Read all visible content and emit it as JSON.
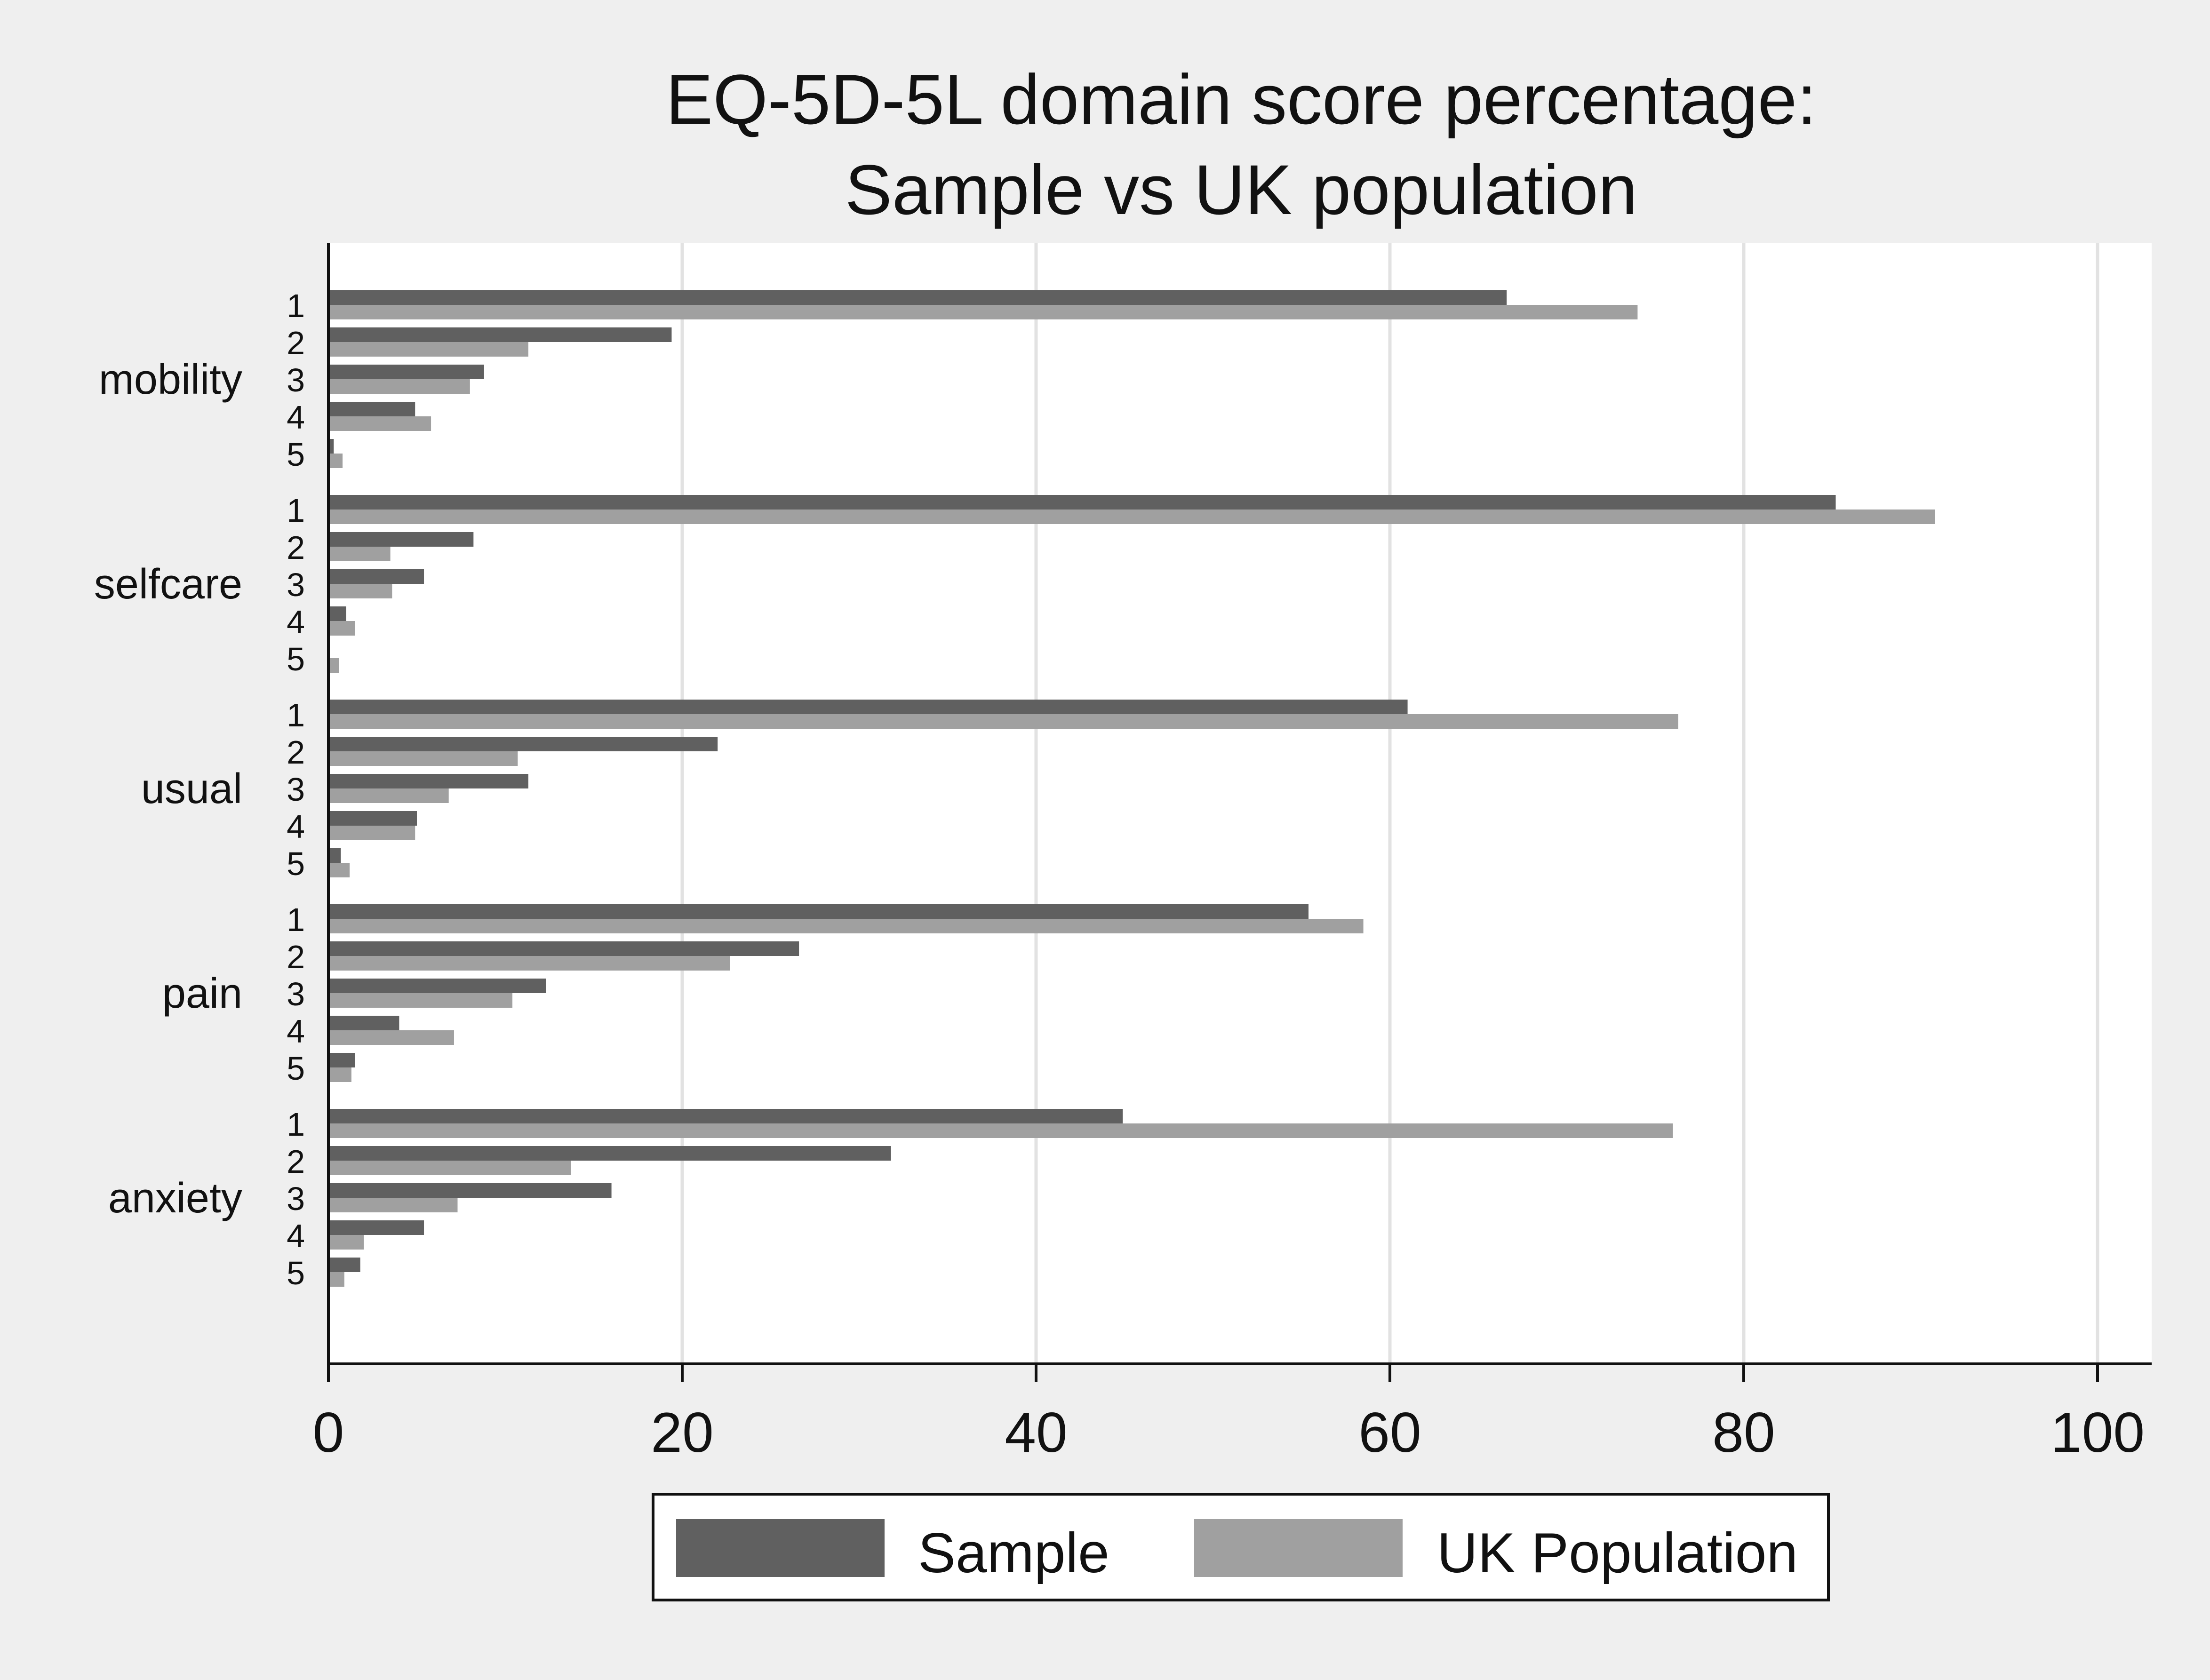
{
  "chart_data": {
    "type": "bar",
    "orientation": "horizontal",
    "title_lines": [
      "EQ-5D-5L domain score percentage:",
      "Sample vs UK population"
    ],
    "groups": [
      {
        "name": "mobility",
        "levels": [
          "1",
          "2",
          "3",
          "4",
          "5"
        ],
        "sample": [
          66.6,
          19.4,
          8.8,
          4.9,
          0.3
        ],
        "uk": [
          74.0,
          11.3,
          8.0,
          5.8,
          0.8
        ]
      },
      {
        "name": "selfcare",
        "levels": [
          "1",
          "2",
          "3",
          "4",
          "5"
        ],
        "sample": [
          85.2,
          8.2,
          5.4,
          1.0,
          0.0
        ],
        "uk": [
          90.8,
          3.5,
          3.6,
          1.5,
          0.6
        ]
      },
      {
        "name": "usual",
        "levels": [
          "1",
          "2",
          "3",
          "4",
          "5"
        ],
        "sample": [
          61.0,
          22.0,
          11.3,
          5.0,
          0.7
        ],
        "uk": [
          76.3,
          10.7,
          6.8,
          4.9,
          1.2
        ]
      },
      {
        "name": "pain",
        "levels": [
          "1",
          "2",
          "3",
          "4",
          "5"
        ],
        "sample": [
          55.4,
          26.6,
          12.3,
          4.0,
          1.5
        ],
        "uk": [
          58.5,
          22.7,
          10.4,
          7.1,
          1.3
        ]
      },
      {
        "name": "anxiety",
        "levels": [
          "1",
          "2",
          "3",
          "4",
          "5"
        ],
        "sample": [
          44.9,
          31.8,
          16.0,
          5.4,
          1.8
        ],
        "uk": [
          76.0,
          13.7,
          7.3,
          2.0,
          0.9
        ]
      }
    ],
    "series": [
      {
        "name": "Sample",
        "color": "#606060"
      },
      {
        "name": "UK Population",
        "color": "#a0a0a0"
      }
    ],
    "xlim": [
      0,
      100
    ],
    "xticks": [
      0,
      20,
      40,
      60,
      80,
      100
    ],
    "grid": true,
    "legend_position": "bottom"
  }
}
